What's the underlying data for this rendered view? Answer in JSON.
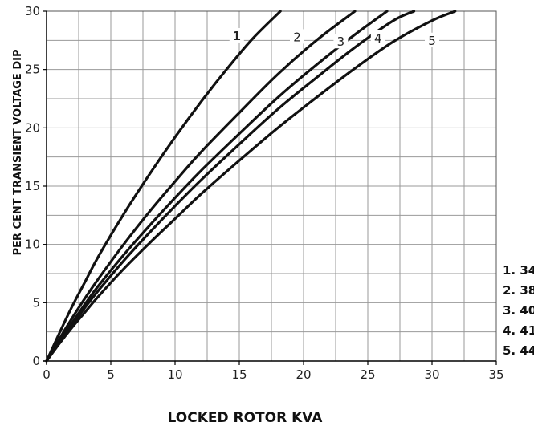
{
  "chart_data": {
    "type": "line",
    "title": "",
    "xlabel": "LOCKED ROTOR KVA",
    "ylabel": "PER CENT TRANSIENT VOLTAGE DIP",
    "xlim": [
      0,
      35
    ],
    "ylim": [
      0,
      30
    ],
    "x_ticks": [
      "0",
      "5",
      "10",
      "15",
      "20",
      "25",
      "30",
      "35"
    ],
    "y_ticks": [
      "0",
      "5",
      "10",
      "15",
      "20",
      "25",
      "30"
    ],
    "grid": true,
    "series": [
      {
        "name": "1",
        "x": [
          0,
          1,
          2,
          3,
          4,
          6,
          8,
          10,
          12,
          14,
          16,
          18.2
        ],
        "y": [
          0,
          2.4,
          4.7,
          6.8,
          8.9,
          12.6,
          16.0,
          19.2,
          22.2,
          25.0,
          27.6,
          30
        ]
      },
      {
        "name": "2",
        "x": [
          0,
          1,
          2,
          3,
          4,
          6,
          8,
          10,
          12,
          15,
          18,
          21,
          24
        ],
        "y": [
          0,
          1.9,
          3.7,
          5.4,
          7.0,
          10.0,
          12.8,
          15.4,
          17.9,
          21.3,
          24.6,
          27.5,
          30
        ]
      },
      {
        "name": "3",
        "x": [
          0,
          1,
          2,
          3,
          4,
          6,
          8,
          10,
          12,
          15,
          18,
          21,
          24,
          26.5
        ],
        "y": [
          0,
          1.7,
          3.3,
          4.9,
          6.4,
          9.1,
          11.6,
          14.0,
          16.3,
          19.5,
          22.6,
          25.4,
          28.0,
          30
        ]
      },
      {
        "name": "4",
        "x": [
          0,
          1,
          2,
          3,
          4,
          6,
          8,
          10,
          12,
          15,
          18,
          21,
          24,
          27,
          28.6
        ],
        "y": [
          0,
          1.6,
          3.1,
          4.6,
          6.0,
          8.6,
          11.0,
          13.3,
          15.5,
          18.6,
          21.6,
          24.3,
          26.9,
          29.2,
          30
        ]
      },
      {
        "name": "5",
        "x": [
          0,
          1,
          2,
          3,
          4,
          6,
          8,
          10,
          12,
          15,
          18,
          21,
          24,
          27,
          30,
          31.8
        ],
        "y": [
          0,
          1.5,
          2.9,
          4.2,
          5.5,
          7.9,
          10.1,
          12.2,
          14.3,
          17.2,
          20.0,
          22.6,
          25.1,
          27.4,
          29.2,
          30
        ]
      }
    ],
    "curve_labels": [
      {
        "text": "1",
        "x": 14.8,
        "y": 27.8,
        "bold": true
      },
      {
        "text": "2",
        "x": 19.5,
        "y": 27.7
      },
      {
        "text": "3",
        "x": 22.9,
        "y": 27.3
      },
      {
        "text": "4",
        "x": 25.8,
        "y": 27.6
      },
      {
        "text": "5",
        "x": 30.0,
        "y": 27.4
      }
    ],
    "legend_position": "right",
    "legend": [
      "1. 34",
      "2. 38",
      "3. 40",
      "4. 41",
      "5. 44"
    ]
  }
}
